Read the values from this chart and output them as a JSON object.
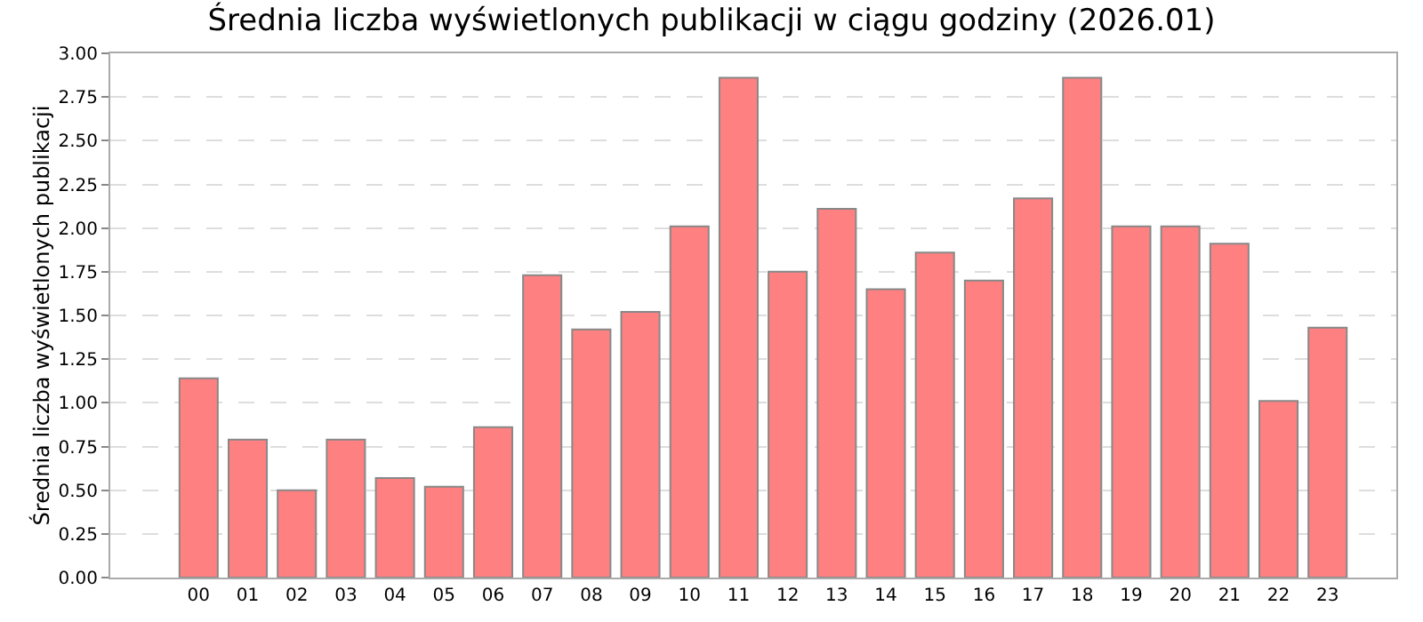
{
  "chart_data": {
    "type": "bar",
    "title": "Średnia liczba wyświetlonych publikacji w ciągu godziny (2026.01)",
    "ylabel": "Średnia liczba wyświetlonych publikacji",
    "categories": [
      "00",
      "01",
      "02",
      "03",
      "04",
      "05",
      "06",
      "07",
      "08",
      "09",
      "10",
      "11",
      "12",
      "13",
      "14",
      "15",
      "16",
      "17",
      "18",
      "19",
      "20",
      "21",
      "22",
      "23"
    ],
    "values": [
      1.14,
      0.79,
      0.5,
      0.79,
      0.57,
      0.52,
      0.86,
      1.73,
      1.42,
      1.52,
      2.01,
      2.86,
      1.75,
      2.11,
      1.65,
      1.86,
      1.7,
      2.17,
      2.86,
      2.01,
      2.01,
      1.91,
      1.01,
      1.43
    ],
    "color": "#ff8080",
    "ylim": [
      0,
      3
    ],
    "yticks": [
      {
        "value": 0,
        "label": "0.00"
      },
      {
        "value": 0.25,
        "label": "0.25"
      },
      {
        "value": 0.5,
        "label": "0.50"
      },
      {
        "value": 0.75,
        "label": "0.75"
      },
      {
        "value": 1,
        "label": "1.00"
      },
      {
        "value": 1.25,
        "label": "1.25"
      },
      {
        "value": 1.5,
        "label": "1.50"
      },
      {
        "value": 1.75,
        "label": "1.75"
      },
      {
        "value": 2,
        "label": "2.00"
      },
      {
        "value": 2.25,
        "label": "2.25"
      },
      {
        "value": 2.5,
        "label": "2.50"
      },
      {
        "value": 2.75,
        "label": "2.75"
      },
      {
        "value": 3,
        "label": "3.00"
      }
    ],
    "grid": "y"
  }
}
